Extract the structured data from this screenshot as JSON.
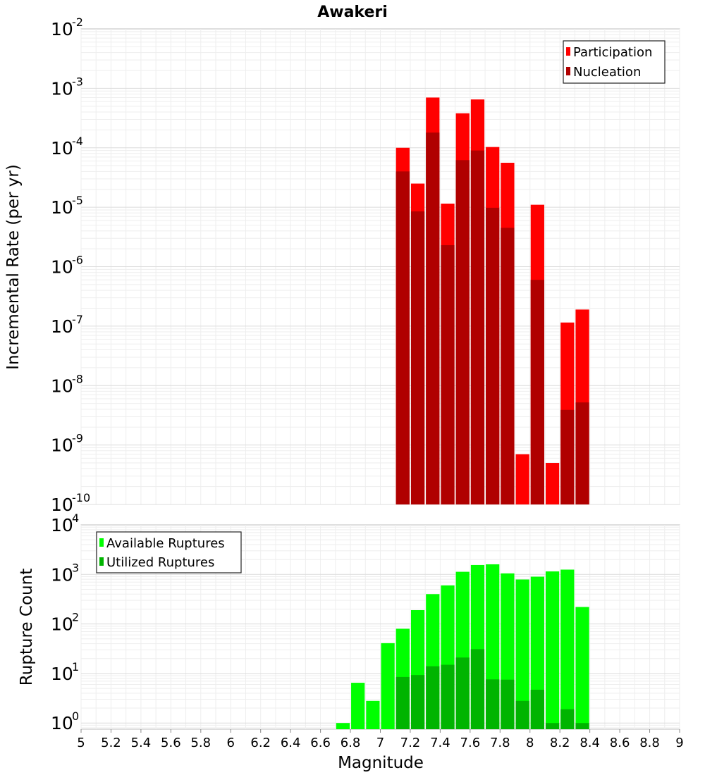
{
  "chart_data": [
    {
      "type": "bar",
      "title": "Awakeri",
      "xlabel": "",
      "ylabel": "Incremental Rate (per yr)",
      "yscale": "log",
      "xlim": [
        5,
        9
      ],
      "ylim": [
        1e-10,
        0.01
      ],
      "grid": true,
      "legend_position": "top-right",
      "x": [
        7.15,
        7.25,
        7.35,
        7.45,
        7.55,
        7.65,
        7.75,
        7.85,
        7.95,
        8.05,
        8.15,
        8.25,
        8.35
      ],
      "series": [
        {
          "name": "Participation",
          "color": "#ff0000",
          "values": [
            0.0001,
            2.5e-05,
            0.0007,
            1.15e-05,
            0.00038,
            0.00065,
            0.000103,
            5.6e-05,
            7e-10,
            1.1e-05,
            5e-10,
            1.15e-07,
            1.9e-07
          ]
        },
        {
          "name": "Nucleation",
          "color": "#b00000",
          "values": [
            4e-05,
            8.5e-06,
            0.00018,
            2.3e-06,
            6.2e-05,
            9e-05,
            9.8e-06,
            4.5e-06,
            null,
            6e-07,
            null,
            3.9e-09,
            5.2e-09
          ]
        }
      ]
    },
    {
      "type": "bar",
      "title": "",
      "xlabel": "Magnitude",
      "ylabel": "Rupture Count",
      "yscale": "log",
      "xlim": [
        5,
        9
      ],
      "ylim": [
        0.75,
        10000
      ],
      "grid": true,
      "legend_position": "top-left",
      "x": [
        6.75,
        6.85,
        6.95,
        7.05,
        7.15,
        7.25,
        7.35,
        7.45,
        7.55,
        7.65,
        7.75,
        7.85,
        7.95,
        8.05,
        8.15,
        8.25,
        8.35
      ],
      "series": [
        {
          "name": "Available Ruptures",
          "color": "#00ff00",
          "values": [
            1,
            6.5,
            2.8,
            41,
            80,
            190,
            400,
            600,
            1130,
            1550,
            1600,
            1050,
            790,
            900,
            1150,
            1250,
            220
          ]
        },
        {
          "name": "Utilized Ruptures",
          "color": "#00b400",
          "values": [
            null,
            null,
            null,
            null,
            8.5,
            9.3,
            14,
            15,
            21,
            31,
            7.6,
            7.5,
            2.8,
            4.7,
            1,
            1.9,
            1
          ]
        }
      ]
    }
  ],
  "x_tick_labels": [
    "5",
    "5.2",
    "5.4",
    "5.6",
    "5.8",
    "6",
    "6.2",
    "6.4",
    "6.6",
    "6.8",
    "7",
    "7.2",
    "7.4",
    "7.6",
    "7.8",
    "8",
    "8.2",
    "8.4",
    "8.6",
    "8.8",
    "9"
  ]
}
